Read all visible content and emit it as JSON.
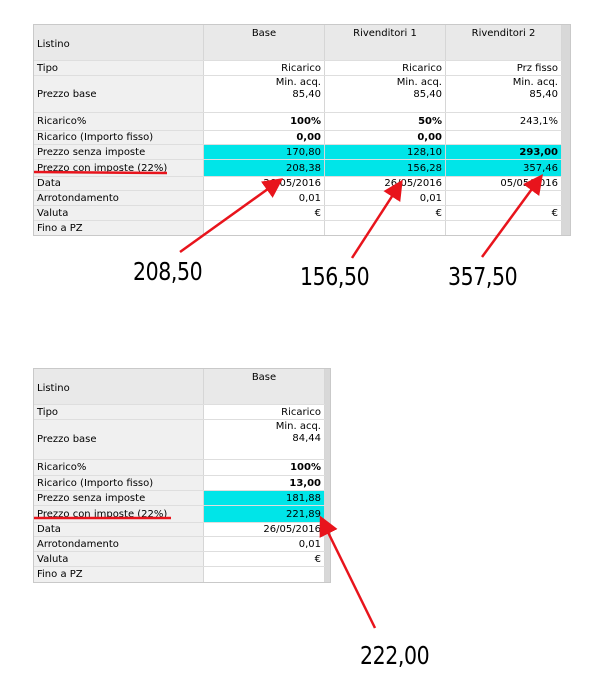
{
  "colors": {
    "highlight": "#00e5e8",
    "arrow": "#e8141c",
    "underline": "#e8141c"
  },
  "top_table": {
    "header_label": "Listino",
    "columns": [
      "Base",
      "Rivenditori 1",
      "Rivenditori 2"
    ],
    "rows": [
      {
        "label": "Tipo",
        "values": [
          "Ricarico",
          "Ricarico",
          "Prz fisso"
        ]
      },
      {
        "label": "Prezzo base",
        "values": [
          [
            "Min. acq.",
            "85,40"
          ],
          [
            "Min. acq.",
            "85,40"
          ],
          [
            "Min. acq.",
            "85,40"
          ]
        ]
      },
      {
        "label": "Ricarico%",
        "values": [
          "100%",
          "50%",
          "243,1%"
        ]
      },
      {
        "label": "Ricarico (Importo fisso)",
        "values": [
          "0,00",
          "0,00",
          ""
        ]
      },
      {
        "label": "Prezzo senza imposte",
        "values": [
          "170,80",
          "128,10",
          "293,00"
        ]
      },
      {
        "label": "Prezzo con imposte (22%)",
        "values": [
          "208,38",
          "156,28",
          "357,46"
        ]
      },
      {
        "label": "Data",
        "values": [
          "26/05/2016",
          "26/05/2016",
          "05/05/2016"
        ]
      },
      {
        "label": "Arrotondamento",
        "values": [
          "0,01",
          "0,01",
          ""
        ]
      },
      {
        "label": "Valuta",
        "values": [
          "€",
          "€",
          "€"
        ]
      },
      {
        "label": "Fino a PZ",
        "values": [
          "",
          "",
          ""
        ]
      }
    ]
  },
  "bottom_table": {
    "header_label": "Listino",
    "columns": [
      "Base"
    ],
    "rows": [
      {
        "label": "Tipo",
        "values": [
          "Ricarico"
        ]
      },
      {
        "label": "Prezzo base",
        "values": [
          [
            "Min. acq.",
            "84,44"
          ]
        ]
      },
      {
        "label": "Ricarico%",
        "values": [
          "100%"
        ]
      },
      {
        "label": "Ricarico (Importo fisso)",
        "values": [
          "13,00"
        ]
      },
      {
        "label": "Prezzo senza imposte",
        "values": [
          "181,88"
        ]
      },
      {
        "label": "Prezzo con imposte (22%)",
        "values": [
          "221,89"
        ]
      },
      {
        "label": "Data",
        "values": [
          "26/05/2016"
        ]
      },
      {
        "label": "Arrotondamento",
        "values": [
          "0,01"
        ]
      },
      {
        "label": "Valuta",
        "values": [
          "€"
        ]
      },
      {
        "label": "Fino a PZ",
        "values": [
          ""
        ]
      }
    ]
  },
  "annotations": {
    "top": [
      "208,50",
      "156,50",
      "357,50"
    ],
    "bottom": [
      "222,00"
    ]
  }
}
